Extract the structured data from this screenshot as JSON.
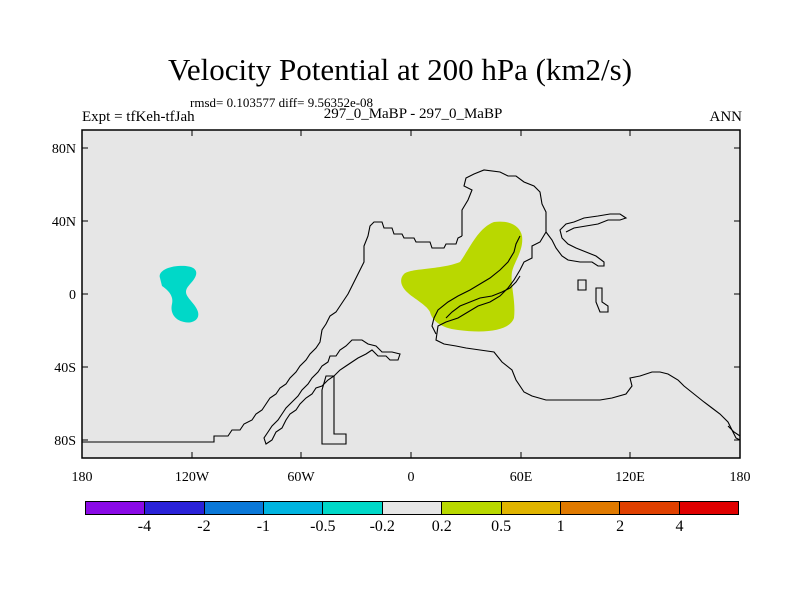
{
  "header": {
    "title": "Velocity Potential at 200 hPa (km2/s)",
    "stats": "rmsd= 0.103577  diff= 9.56352e-08",
    "experiment": "Expt = tfKeh-tfJah",
    "cases": "297_0_MaBP - 297_0_MaBP",
    "season": "ANN"
  },
  "axes": {
    "x_ticks": [
      "180",
      "120W",
      "60W",
      "0",
      "60E",
      "120E",
      "180"
    ],
    "y_ticks": [
      "80N",
      "40N",
      "0",
      "40S",
      "80S"
    ]
  },
  "map": {
    "background_color": "#e6e6e6",
    "features": [
      {
        "name": "negative anomaly",
        "level": "-0.5 to -0.2",
        "color": "#00d8c8"
      },
      {
        "name": "positive anomaly",
        "level": "0.2 to 0.5",
        "color": "#b9d800"
      }
    ]
  },
  "colorbar": {
    "colors": [
      "#8a0ae6",
      "#2a22d8",
      "#0a78d8",
      "#00b4e0",
      "#00d8c8",
      "#e6e6e6",
      "#b9d800",
      "#e0b400",
      "#e07a00",
      "#e04000",
      "#e00000"
    ],
    "labels": [
      "-4",
      "-2",
      "-1",
      "-0.5",
      "-0.2",
      "0.2",
      "0.5",
      "1",
      "2",
      "4"
    ]
  }
}
